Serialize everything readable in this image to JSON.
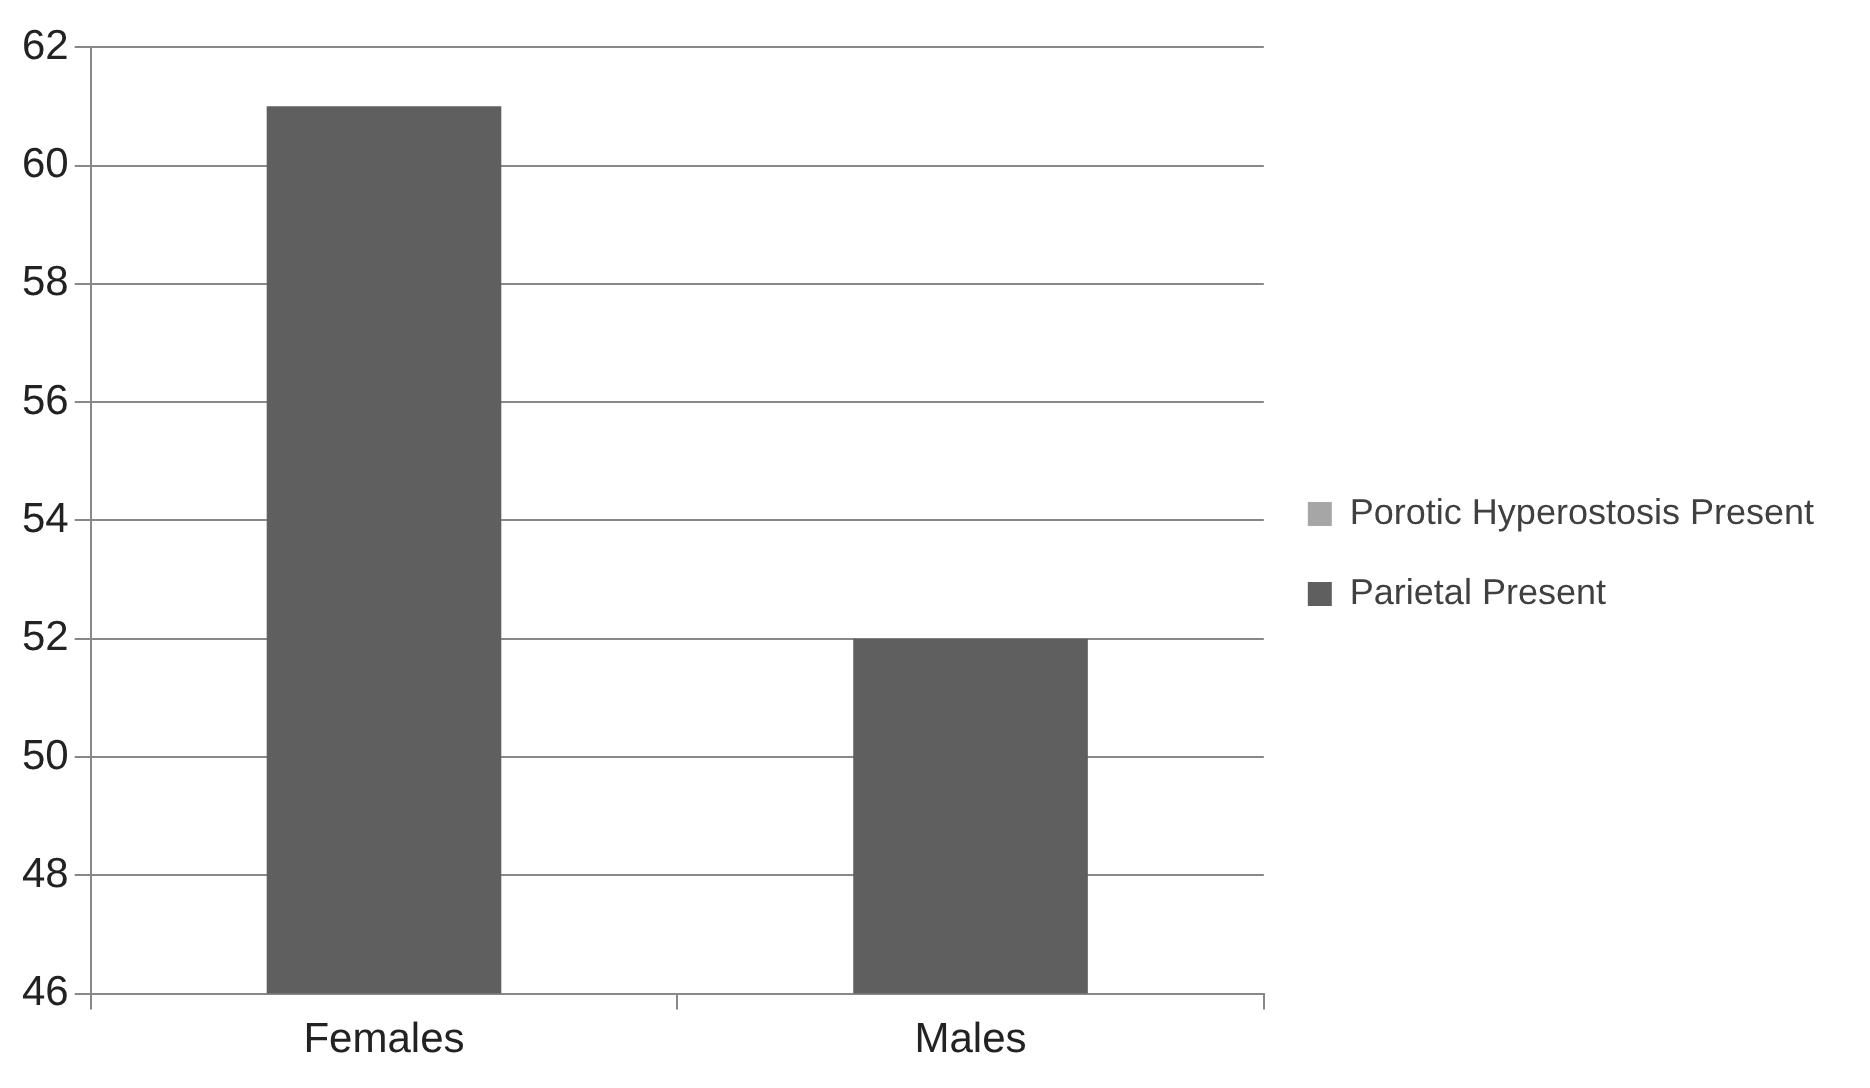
{
  "chart_data": {
    "type": "bar",
    "categories": [
      "Females",
      "Males"
    ],
    "series": [
      {
        "name": "Porotic Hyperostosis Present",
        "color": "#a6a6a6",
        "values": [
          null,
          null
        ]
      },
      {
        "name": "Parietal Present",
        "color": "#5f5f5f",
        "values": [
          61,
          52
        ]
      }
    ],
    "ylim": [
      46,
      62
    ],
    "yticks": [
      46,
      48,
      50,
      52,
      54,
      56,
      58,
      60,
      62
    ],
    "grid": "y",
    "legend": "right"
  }
}
